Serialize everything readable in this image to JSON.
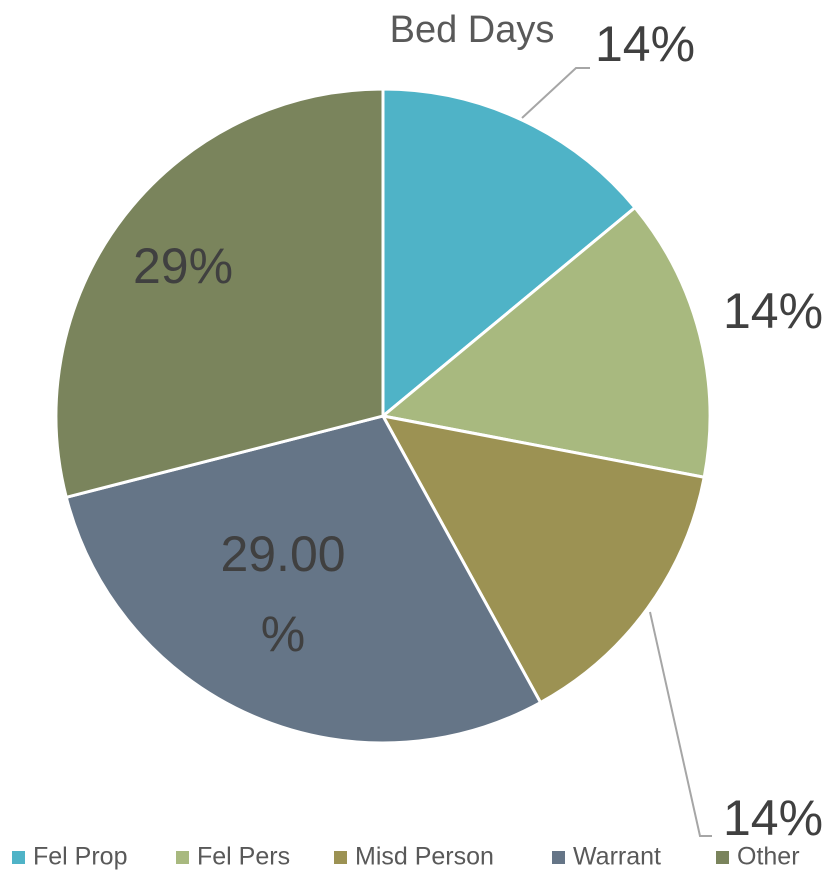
{
  "chart_data": {
    "type": "pie",
    "title": "Bed Days",
    "categories": [
      "Fel Prop",
      "Fel Pers",
      "Misd Person",
      "Warrant",
      "Other"
    ],
    "values": [
      14,
      14,
      14,
      29,
      29
    ],
    "value_labels": [
      "14%",
      "14%",
      "14%",
      "29.00%",
      "29%"
    ],
    "colors": [
      "#4fb3c7",
      "#a8b97f",
      "#9c9253",
      "#657587",
      "#7a845c"
    ],
    "legend": "bottom"
  }
}
